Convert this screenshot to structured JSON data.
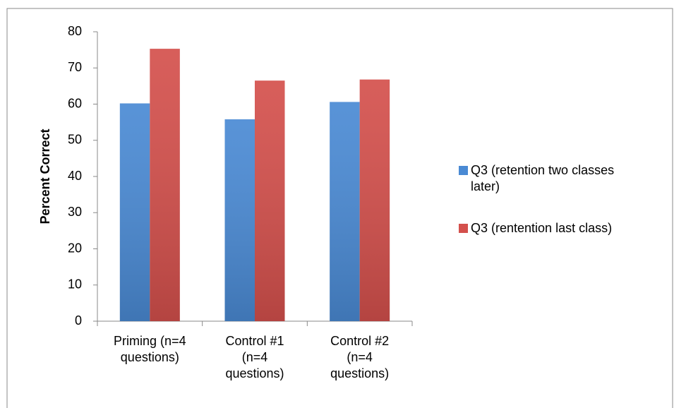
{
  "chart_data": {
    "type": "bar",
    "y_label": "Percent Correct",
    "categories": [
      "Priming (n=4\nquestions)",
      "Control #1\n(n=4\nquestions)",
      "Control #2\n(n=4\nquestions)"
    ],
    "series": [
      {
        "name": "Q3 (retention two classes later)",
        "color": "#4a8ad4",
        "values": [
          60.2,
          55.8,
          60.6
        ]
      },
      {
        "name": "Q3 (rentention last class)",
        "color": "#d4504c",
        "values": [
          75.3,
          66.5,
          66.8
        ]
      }
    ],
    "ylim": [
      0,
      80
    ],
    "yticks": [
      0,
      10,
      20,
      30,
      40,
      50,
      60,
      70,
      80
    ],
    "grid": false,
    "legend": "right"
  }
}
